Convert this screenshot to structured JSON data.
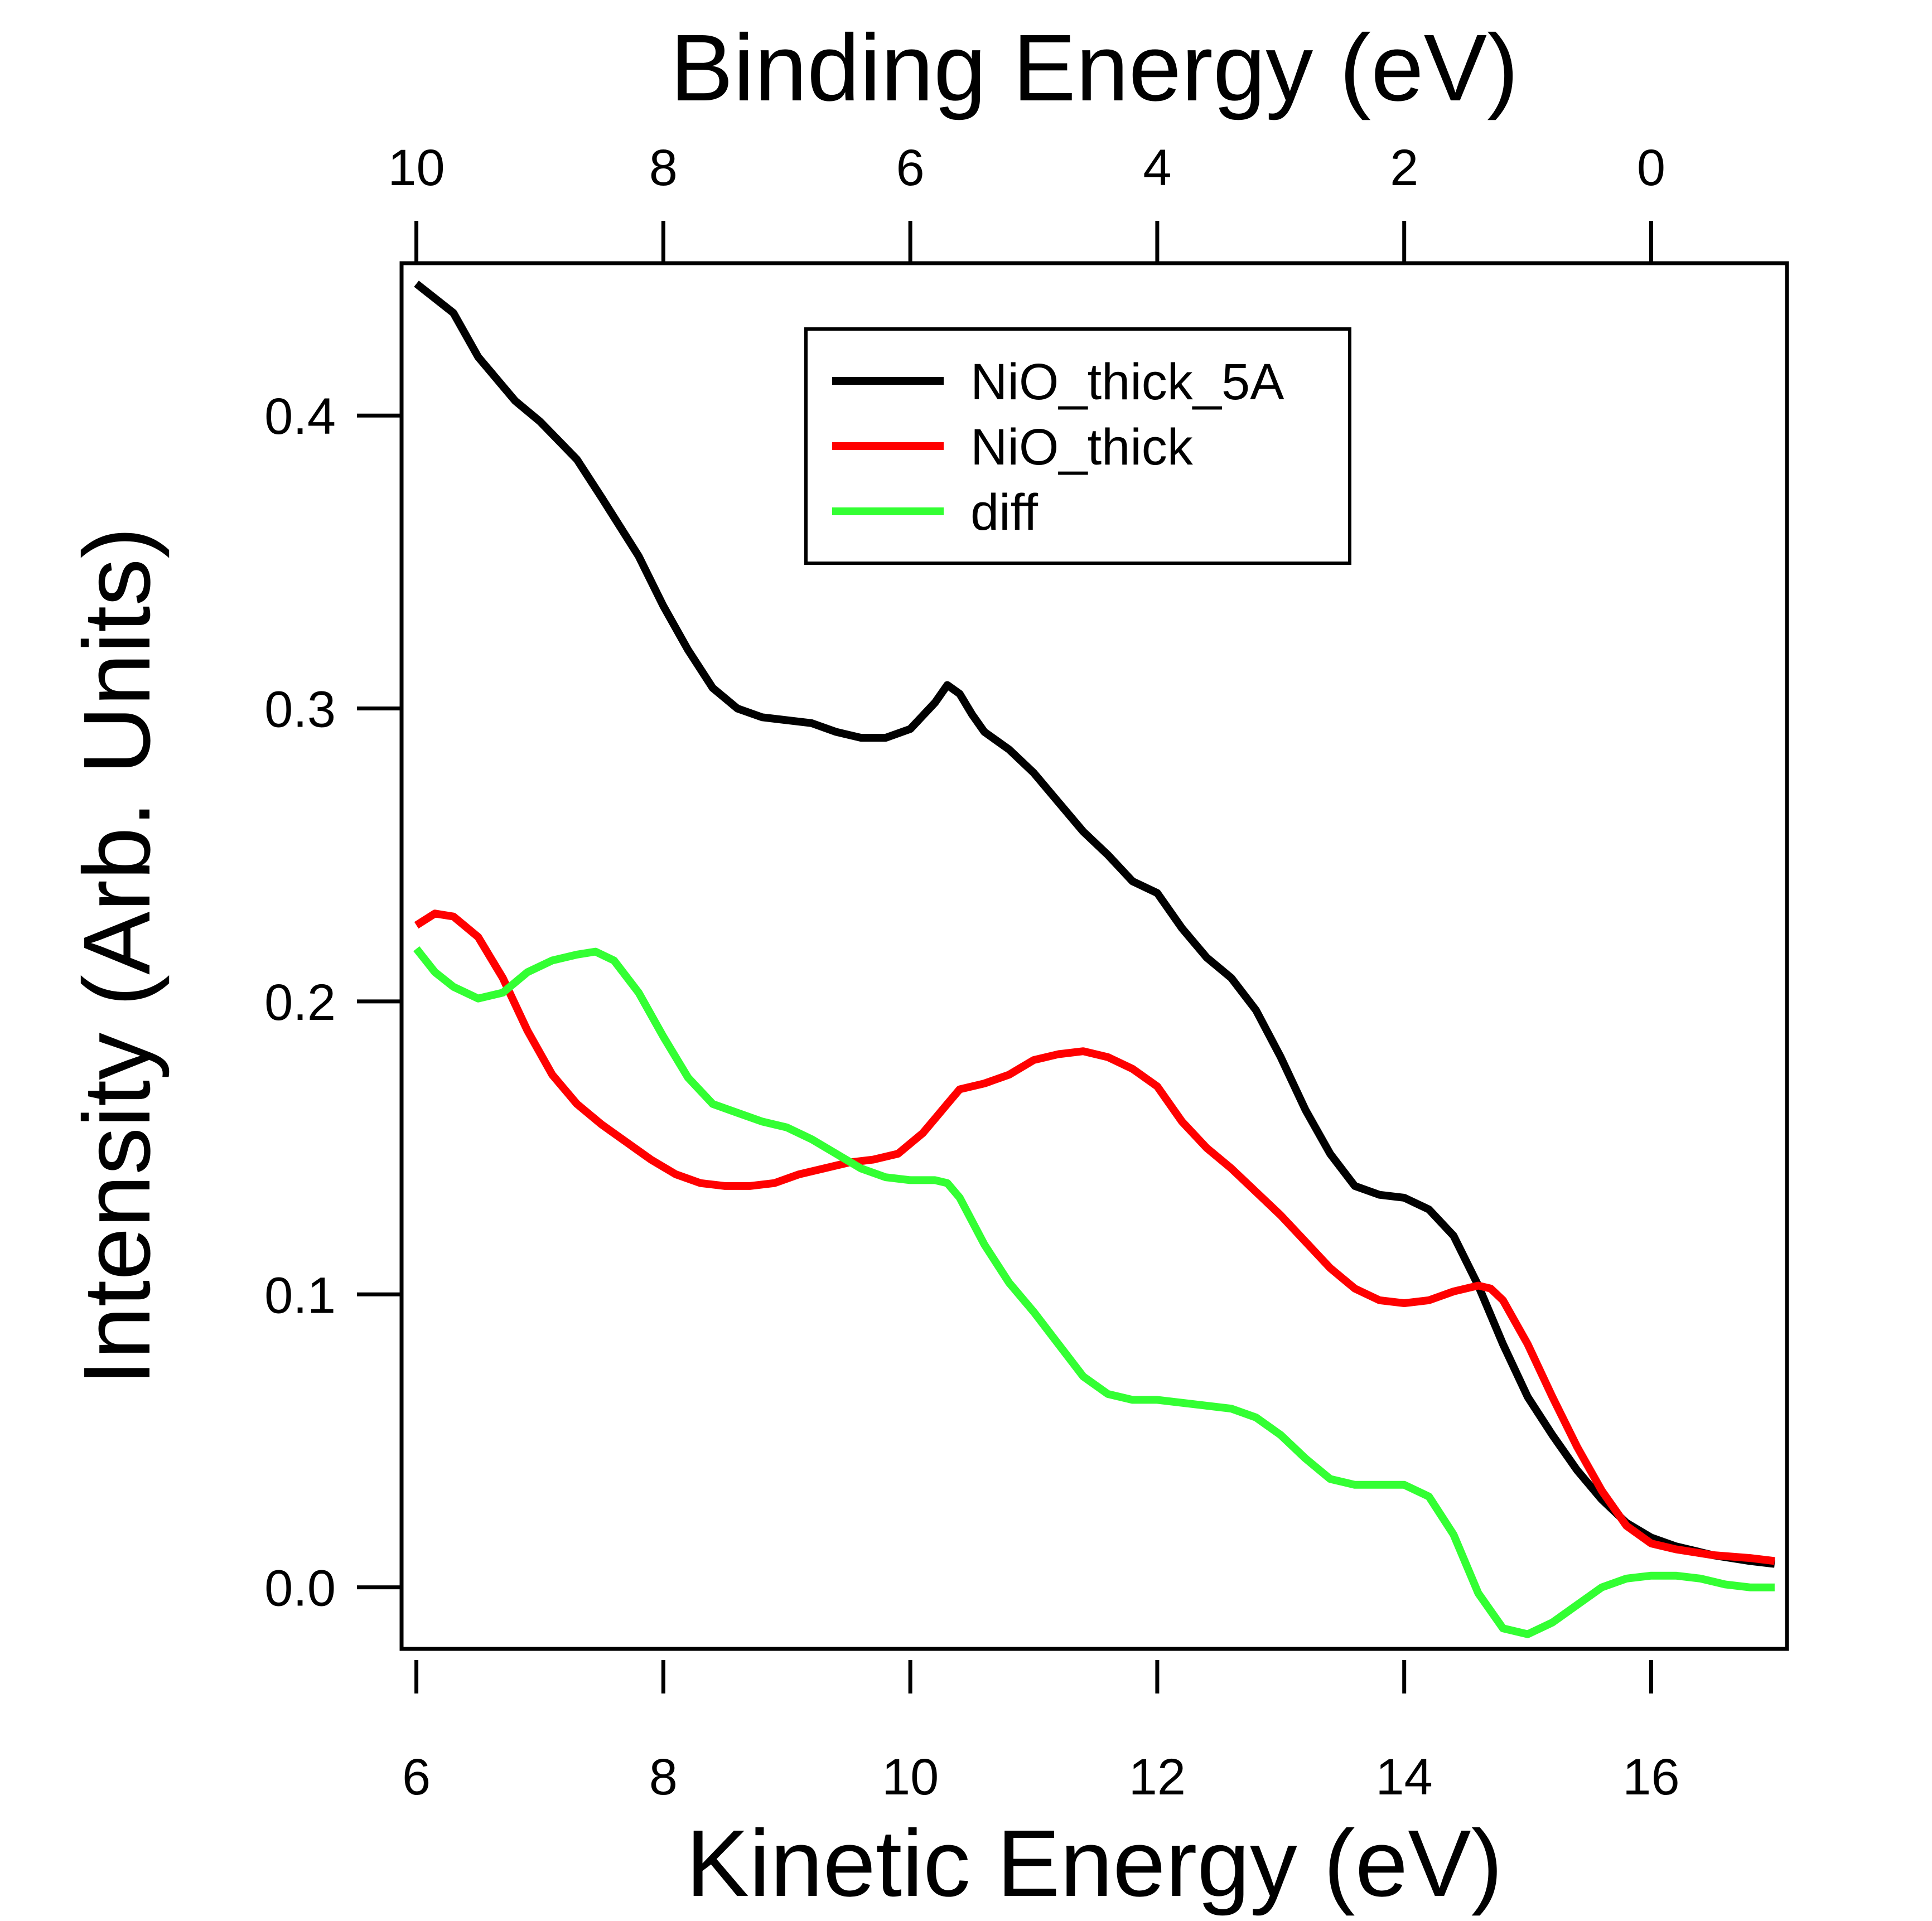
{
  "chart_data": {
    "type": "line",
    "title": "",
    "xlabel": "Kinetic Energy (eV)",
    "x2label": "Binding Energy (eV)",
    "ylabel": "Intensity (Arb. Units)",
    "xlim": [
      5.88,
      17.1
    ],
    "ylim": [
      -0.021,
      0.452
    ],
    "x_ticks": [
      6,
      8,
      10,
      12,
      14,
      16
    ],
    "x_tick_labels": [
      "6",
      "8",
      "10",
      "12",
      "14",
      "16"
    ],
    "x2_ticks": [
      10,
      8,
      6,
      4,
      2,
      0
    ],
    "x2_tick_labels": [
      "10",
      "8",
      "6",
      "4",
      "2",
      "0"
    ],
    "x2_mapping": "binding = 16.0 - kinetic",
    "y_ticks": [
      0.0,
      0.1,
      0.2,
      0.3,
      0.4
    ],
    "y_tick_labels": [
      "0.0",
      "0.1",
      "0.2",
      "0.3",
      "0.4"
    ],
    "grid": false,
    "legend_position": "top-center",
    "series": [
      {
        "name": "NiO_thick_5A",
        "color": "#000000",
        "x": [
          6.0,
          6.3,
          6.5,
          6.8,
          7.0,
          7.3,
          7.5,
          7.8,
          8.0,
          8.2,
          8.4,
          8.6,
          8.8,
          9.0,
          9.2,
          9.4,
          9.6,
          9.8,
          10.0,
          10.2,
          10.3,
          10.4,
          10.5,
          10.6,
          10.8,
          11.0,
          11.2,
          11.4,
          11.6,
          11.8,
          12.0,
          12.2,
          12.4,
          12.6,
          12.8,
          13.0,
          13.2,
          13.4,
          13.6,
          13.8,
          14.0,
          14.2,
          14.4,
          14.6,
          14.8,
          15.0,
          15.2,
          15.4,
          15.6,
          15.8,
          16.0,
          16.2,
          16.5,
          16.8,
          17.0
        ],
        "y": [
          0.445,
          0.435,
          0.42,
          0.405,
          0.398,
          0.385,
          0.372,
          0.352,
          0.335,
          0.32,
          0.307,
          0.3,
          0.297,
          0.296,
          0.295,
          0.292,
          0.29,
          0.29,
          0.293,
          0.302,
          0.308,
          0.305,
          0.298,
          0.292,
          0.286,
          0.278,
          0.268,
          0.258,
          0.25,
          0.241,
          0.237,
          0.225,
          0.215,
          0.208,
          0.197,
          0.181,
          0.163,
          0.148,
          0.137,
          0.134,
          0.133,
          0.129,
          0.12,
          0.103,
          0.083,
          0.065,
          0.052,
          0.04,
          0.03,
          0.022,
          0.017,
          0.014,
          0.011,
          0.009,
          0.008
        ]
      },
      {
        "name": "NiO_thick",
        "color": "#ff0000",
        "x": [
          6.0,
          6.15,
          6.3,
          6.5,
          6.7,
          6.9,
          7.1,
          7.3,
          7.5,
          7.7,
          7.9,
          8.1,
          8.3,
          8.5,
          8.7,
          8.9,
          9.1,
          9.3,
          9.5,
          9.7,
          9.9,
          10.1,
          10.2,
          10.3,
          10.4,
          10.6,
          10.8,
          11.0,
          11.2,
          11.4,
          11.6,
          11.8,
          12.0,
          12.2,
          12.4,
          12.6,
          12.8,
          13.0,
          13.2,
          13.4,
          13.6,
          13.8,
          14.0,
          14.2,
          14.4,
          14.6,
          14.7,
          14.8,
          15.0,
          15.2,
          15.4,
          15.6,
          15.8,
          16.0,
          16.2,
          16.5,
          16.8,
          17.0
        ],
        "y": [
          0.226,
          0.23,
          0.229,
          0.222,
          0.208,
          0.19,
          0.175,
          0.165,
          0.158,
          0.152,
          0.146,
          0.141,
          0.138,
          0.137,
          0.137,
          0.138,
          0.141,
          0.143,
          0.145,
          0.146,
          0.148,
          0.155,
          0.16,
          0.165,
          0.17,
          0.172,
          0.175,
          0.18,
          0.182,
          0.183,
          0.181,
          0.177,
          0.171,
          0.159,
          0.15,
          0.143,
          0.135,
          0.127,
          0.118,
          0.109,
          0.102,
          0.098,
          0.097,
          0.098,
          0.101,
          0.103,
          0.102,
          0.098,
          0.083,
          0.065,
          0.048,
          0.033,
          0.021,
          0.015,
          0.013,
          0.011,
          0.01,
          0.009
        ]
      },
      {
        "name": "diff",
        "color": "#33ff33",
        "x": [
          6.0,
          6.15,
          6.3,
          6.5,
          6.7,
          6.9,
          7.1,
          7.3,
          7.45,
          7.6,
          7.8,
          8.0,
          8.2,
          8.4,
          8.6,
          8.8,
          9.0,
          9.2,
          9.4,
          9.6,
          9.8,
          10.0,
          10.2,
          10.3,
          10.4,
          10.6,
          10.8,
          11.0,
          11.2,
          11.4,
          11.6,
          11.8,
          12.0,
          12.2,
          12.4,
          12.6,
          12.8,
          13.0,
          13.2,
          13.4,
          13.6,
          13.8,
          14.0,
          14.2,
          14.4,
          14.6,
          14.8,
          15.0,
          15.2,
          15.4,
          15.6,
          15.8,
          16.0,
          16.2,
          16.4,
          16.6,
          16.8,
          17.0
        ],
        "y": [
          0.218,
          0.21,
          0.205,
          0.201,
          0.203,
          0.21,
          0.214,
          0.216,
          0.217,
          0.214,
          0.203,
          0.188,
          0.174,
          0.165,
          0.162,
          0.159,
          0.157,
          0.153,
          0.148,
          0.143,
          0.14,
          0.139,
          0.139,
          0.138,
          0.133,
          0.117,
          0.104,
          0.094,
          0.083,
          0.072,
          0.066,
          0.064,
          0.064,
          0.063,
          0.062,
          0.061,
          0.058,
          0.052,
          0.044,
          0.037,
          0.035,
          0.035,
          0.035,
          0.031,
          0.018,
          -0.002,
          -0.014,
          -0.016,
          -0.012,
          -0.006,
          0.0,
          0.003,
          0.004,
          0.004,
          0.003,
          0.001,
          0.0,
          0.0
        ]
      }
    ]
  }
}
